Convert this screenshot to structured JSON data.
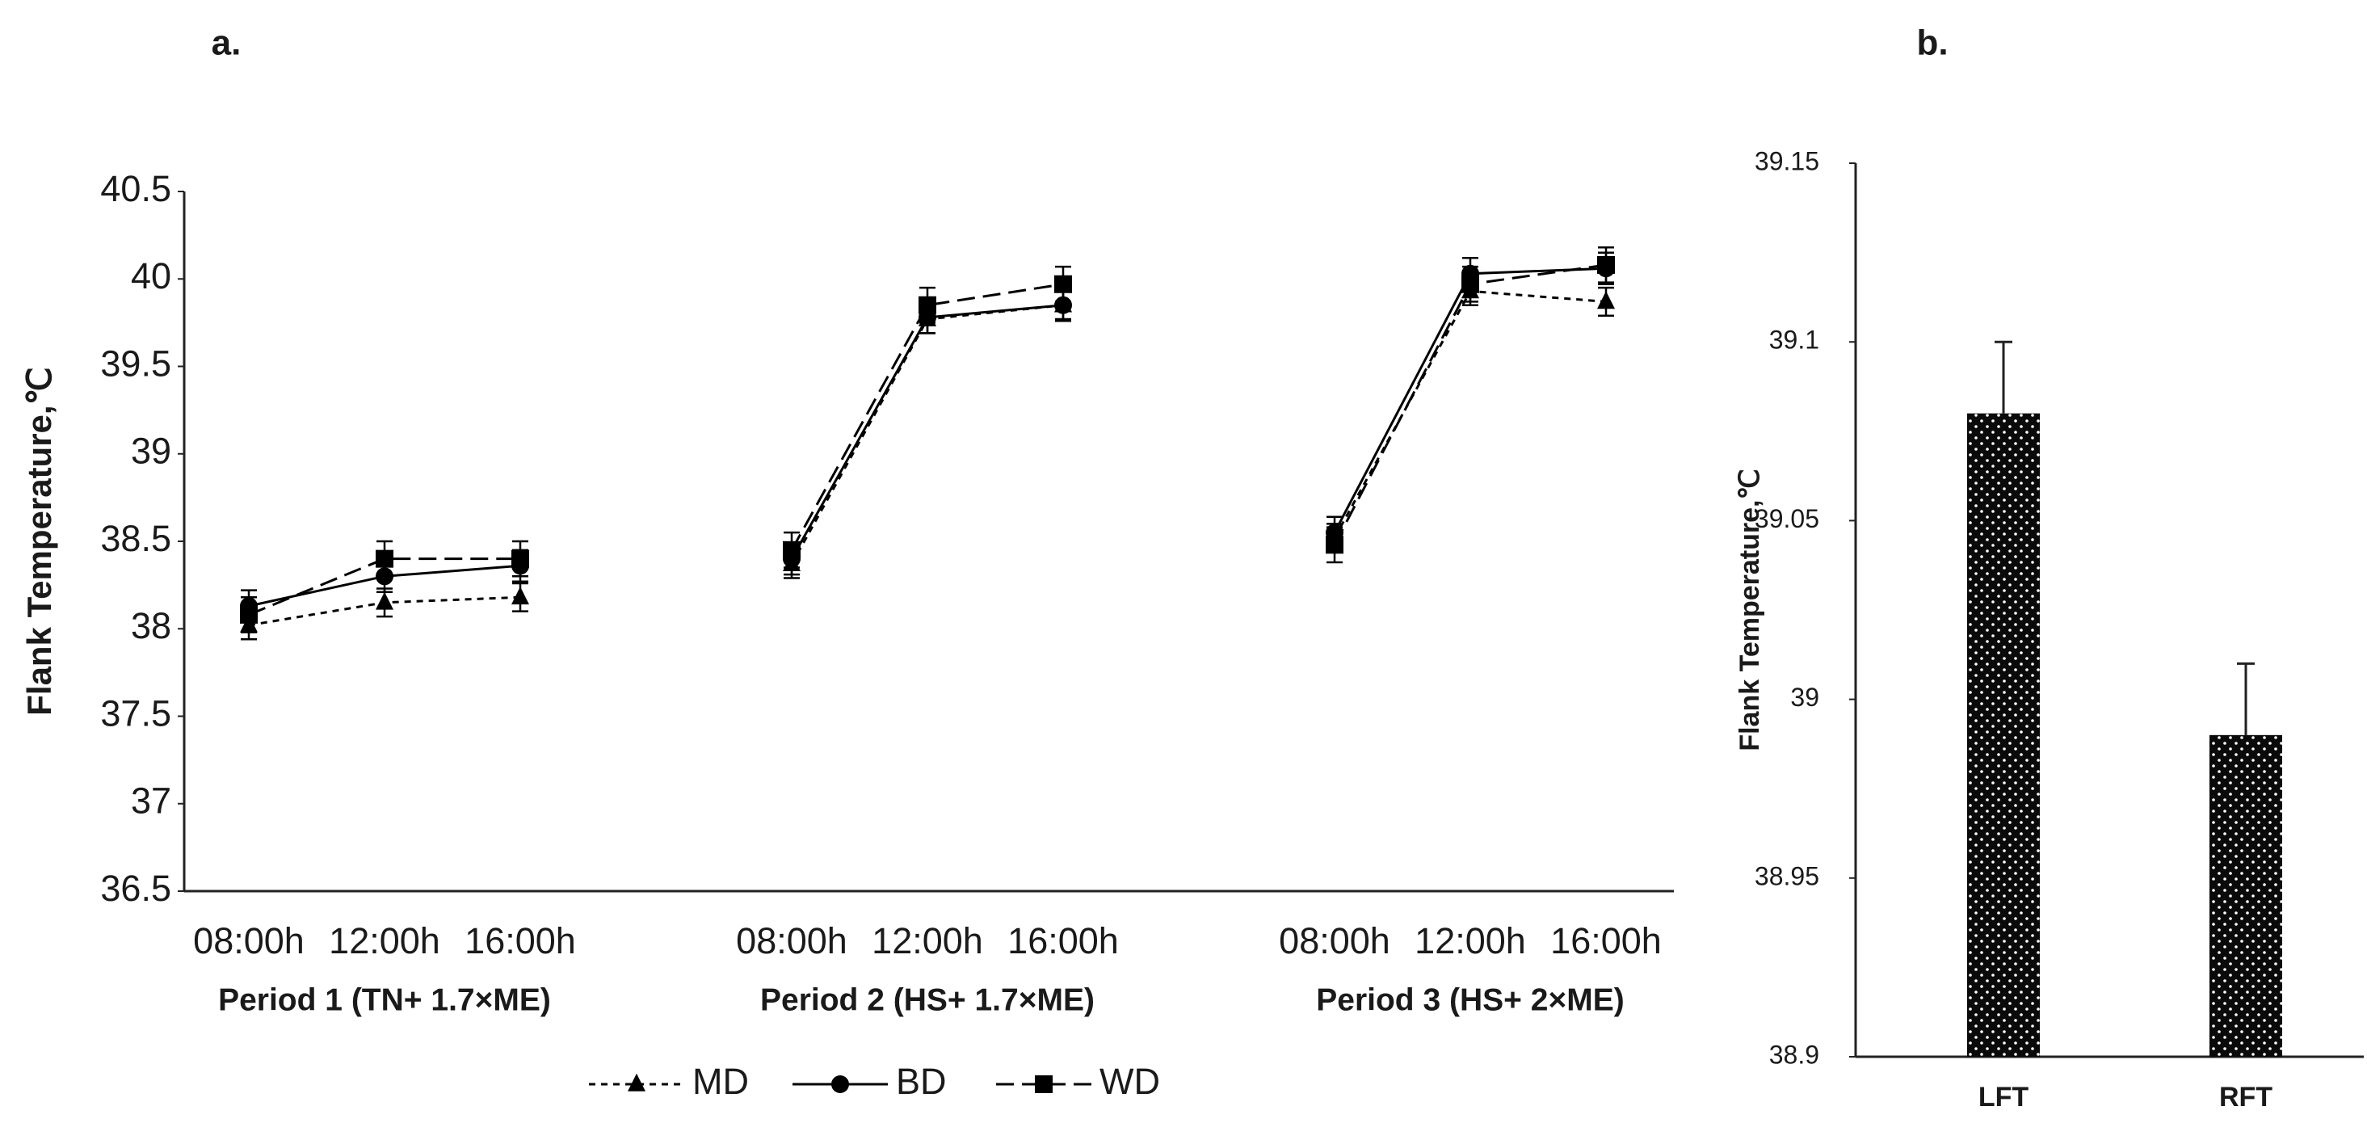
{
  "chart_data": [
    {
      "type": "line",
      "title": "a.",
      "y_label": "Flank Temperature,℃",
      "categories": [
        "08:00h",
        "12:00h",
        "16:00h",
        null,
        "08:00h",
        "12:00h",
        "16:00h",
        null,
        "08:00h",
        "12:00h",
        "16:00h"
      ],
      "groups": [
        "Period 1 (TN+ 1.7×ME)",
        "Period 2 (HS+ 1.7×ME)",
        "Period 3 (HS+ 2×ME)"
      ],
      "series": [
        {
          "name": "MD",
          "color": "#000000",
          "dash": "short",
          "marker": "triangle",
          "values": [
            38.02,
            38.15,
            38.18,
            null,
            38.37,
            39.77,
            39.85,
            null,
            38.52,
            39.93,
            39.87
          ],
          "errors": [
            0.08,
            0.08,
            0.08,
            null,
            0.08,
            0.08,
            0.08,
            null,
            0.08,
            0.08,
            0.08
          ]
        },
        {
          "name": "BD",
          "color": "#000000",
          "dash": "solid",
          "marker": "circle",
          "values": [
            38.13,
            38.3,
            38.36,
            null,
            38.4,
            39.78,
            39.85,
            null,
            38.55,
            40.03,
            40.06
          ],
          "errors": [
            0.09,
            0.09,
            0.09,
            null,
            0.09,
            0.09,
            0.09,
            null,
            0.09,
            0.09,
            0.09
          ]
        },
        {
          "name": "WD",
          "color": "#000000",
          "dash": "long",
          "marker": "square",
          "values": [
            38.08,
            38.4,
            38.4,
            null,
            38.45,
            39.85,
            39.97,
            null,
            38.48,
            39.97,
            40.08
          ],
          "errors": [
            0.1,
            0.1,
            0.1,
            null,
            0.1,
            0.1,
            0.1,
            null,
            0.1,
            0.1,
            0.1
          ]
        }
      ],
      "ylim": [
        36.5,
        40.5
      ],
      "yticks": [
        36.5,
        37,
        37.5,
        38,
        38.5,
        39,
        39.5,
        40,
        40.5
      ],
      "legend": "bottom"
    },
    {
      "type": "bar",
      "title": "b.",
      "y_label": "Flank Temperature,℃",
      "categories": [
        "LFT",
        "RFT"
      ],
      "values": [
        39.08,
        38.99
      ],
      "errors": [
        0.02,
        0.02
      ],
      "color": "#0a0a0a",
      "pattern": "dots",
      "ylim": [
        38.9,
        39.15
      ],
      "yticks": [
        38.9,
        38.95,
        39,
        39.05,
        39.1,
        39.15
      ]
    }
  ]
}
